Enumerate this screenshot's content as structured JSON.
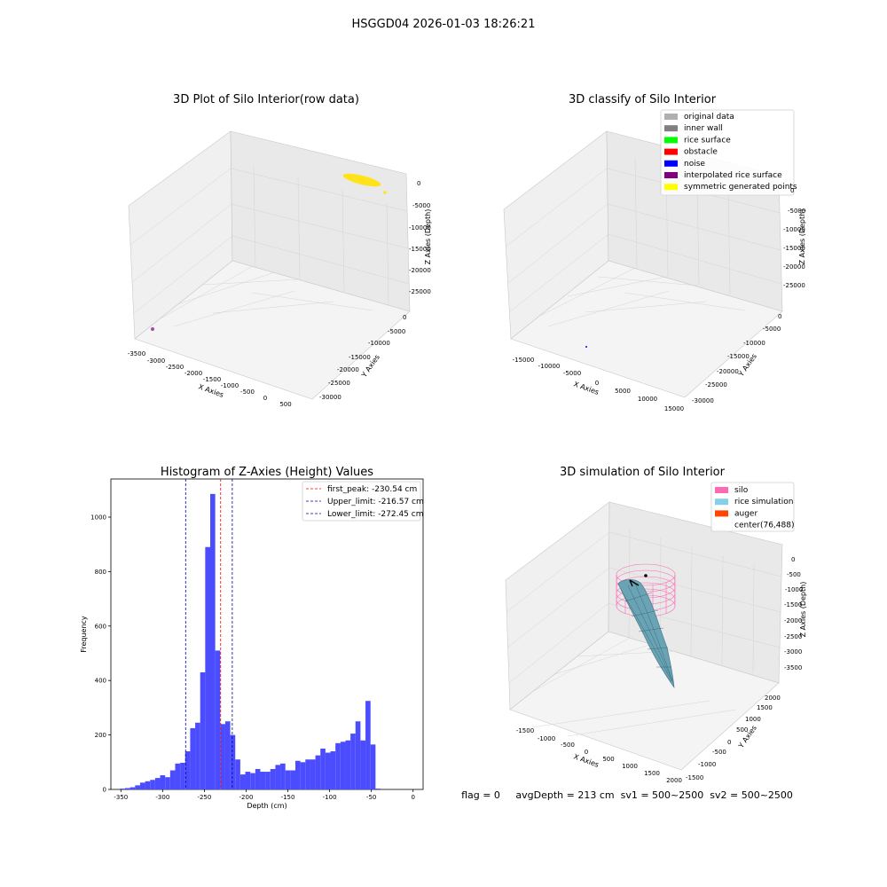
{
  "figure": {
    "title": "HSGGD04 2026-01-03 18:26:21",
    "status_line": "flag = 0     avgDepth = 213 cm  sv1 = 500~2500  sv2 = 500~2500"
  },
  "chart_data": [
    {
      "type": "scatter",
      "projection": "3d",
      "title": "3D Plot of Silo Interior(row data)",
      "xlabel": "X Axies",
      "ylabel": "Y Axies",
      "zlabel": "Z Axies (Depth)",
      "xticks": [
        "-3500",
        "-3000",
        "-2500",
        "-2000",
        "-1500",
        "-1000",
        "-500",
        "0",
        "500"
      ],
      "yticks": [
        "0",
        "-5000",
        "-10000",
        "-15000",
        "-20000",
        "-25000",
        "-30000"
      ],
      "zticks": [
        "0",
        "-5000",
        "-10000",
        "-15000",
        "-20000",
        "-25000"
      ],
      "series": [
        {
          "color": "#ffe21a",
          "points": [
            [
              -300,
              -300,
              -50
            ],
            [
              -200,
              -100,
              -200
            ],
            [
              0,
              0,
              -100
            ],
            [
              200,
              200,
              -250
            ],
            [
              300,
              350,
              -150
            ],
            [
              500,
              500,
              -2500
            ]
          ]
        },
        {
          "color": "#9b4fa3",
          "points": [
            [
              -3400,
              -30000,
              -26000
            ]
          ]
        }
      ],
      "grid": true
    },
    {
      "type": "scatter",
      "projection": "3d",
      "title": "3D classify of Silo Interior",
      "xlabel": "X Axies",
      "ylabel": "Y Axies",
      "zlabel": "Z Axies (Depth)",
      "xticks": [
        "-15000",
        "-10000",
        "-5000",
        "0",
        "5000",
        "10000",
        "15000"
      ],
      "yticks": [
        "0",
        "-5000",
        "-10000",
        "-15000",
        "-20000",
        "-25000",
        "-30000"
      ],
      "zticks": [
        "0",
        "-5000",
        "-10000",
        "-15000",
        "-20000",
        "-25000"
      ],
      "legend": {
        "position": "upper right",
        "entries": [
          {
            "label": "original data",
            "color": "#b0b0b0"
          },
          {
            "label": "inner wall",
            "color": "#808080"
          },
          {
            "label": "rice surface",
            "color": "#00ff00"
          },
          {
            "label": "obstacle",
            "color": "#ff0000"
          },
          {
            "label": "noise",
            "color": "#0000ff"
          },
          {
            "label": "interpolated rice surface",
            "color": "#800080"
          },
          {
            "label": "symmetric generated points",
            "color": "#ffff00"
          }
        ]
      },
      "grid": true
    },
    {
      "type": "bar",
      "title": "Histogram of Z-Axies (Height) Values",
      "xlabel": "Depth (cm)",
      "ylabel": "Frequency",
      "xlim": [
        -362,
        12
      ],
      "ylim": [
        0,
        1140
      ],
      "xticks": [
        -350,
        -300,
        -250,
        -200,
        -150,
        -100,
        -50,
        0
      ],
      "yticks": [
        0,
        200,
        400,
        600,
        800,
        1000
      ],
      "bar_color": "#4c4cff",
      "bins": {
        "left": [
          -351,
          -345,
          -339,
          -333,
          -327,
          -321,
          -315,
          -309,
          -303,
          -297,
          -291,
          -285,
          -279,
          -273,
          -267,
          -261,
          -255,
          -249,
          -243,
          -237,
          -231,
          -225,
          -219,
          -213,
          -207,
          -201,
          -195,
          -189,
          -183,
          -177,
          -171,
          -165,
          -159,
          -153,
          -147,
          -141,
          -135,
          -129,
          -123,
          -117,
          -111,
          -105,
          -99,
          -93,
          -87,
          -81,
          -75,
          -69,
          -63,
          -57,
          -51,
          -45,
          -39,
          -33,
          -27,
          -21,
          -15,
          -9,
          -3
        ],
        "width": 6,
        "values": [
          3,
          5,
          8,
          15,
          25,
          30,
          35,
          42,
          52,
          45,
          70,
          95,
          98,
          140,
          225,
          245,
          430,
          890,
          1085,
          510,
          240,
          250,
          200,
          110,
          55,
          65,
          60,
          75,
          65,
          65,
          75,
          90,
          95,
          70,
          70,
          105,
          100,
          110,
          110,
          125,
          150,
          135,
          140,
          170,
          175,
          180,
          205,
          250,
          180,
          325,
          165,
          3,
          0,
          0,
          0,
          0,
          0,
          0,
          0
        ]
      },
      "vlines": [
        {
          "x": -230.54,
          "color": "#ff0000",
          "label": "first_peak: -230.54 cm"
        },
        {
          "x": -216.57,
          "color": "#0000aa",
          "label": "Upper_limit: -216.57 cm"
        },
        {
          "x": -272.45,
          "color": "#0000aa",
          "label": "Lower_limit: -272.45 cm"
        }
      ],
      "legend": {
        "position": "upper right"
      }
    },
    {
      "type": "surface",
      "projection": "3d",
      "title": "3D simulation of Silo Interior",
      "xlabel": "X Axies",
      "ylabel": "Y Axies",
      "zlabel": "Z Axies (Depth)",
      "xticks": [
        "-1500",
        "-1000",
        "-500",
        "0",
        "500",
        "1000",
        "1500",
        "2000"
      ],
      "yticks": [
        "2000",
        "1500",
        "1000",
        "500",
        "0",
        "-500",
        "-1000",
        "-1500"
      ],
      "zticks": [
        "0",
        "-500",
        "-1000",
        "-1500",
        "-2000",
        "-2500",
        "-3000",
        "-3500"
      ],
      "legend": {
        "position": "upper right",
        "entries": [
          {
            "label": "silo",
            "color": "#ff69b4"
          },
          {
            "label": "rice simulation",
            "color": "#87ceeb"
          },
          {
            "label": "auger",
            "color": "#ff4500"
          },
          {
            "label": "center(76,488)",
            "color": "#ffffff"
          }
        ]
      },
      "grid": true
    }
  ]
}
